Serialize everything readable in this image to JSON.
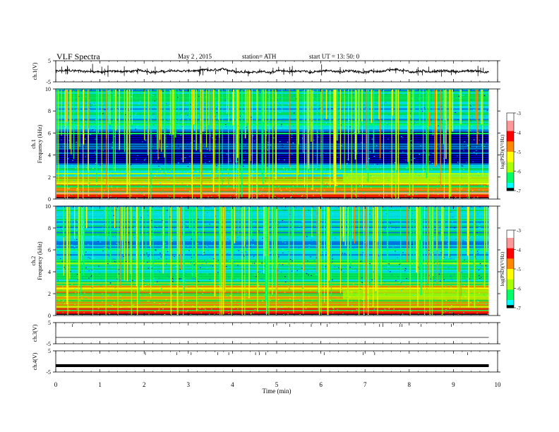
{
  "header": {
    "title": "VLF  Spectra",
    "date": "May 2  , 2015",
    "station": "station= ATH",
    "start": "start  UT  =    13: 50: 0"
  },
  "chart_data": [
    {
      "type": "line",
      "panel": "ch1_waveform",
      "ylabel": "ch.1(V)",
      "y_ticks": [
        "5",
        "-5"
      ],
      "ylim": [
        -5,
        5
      ],
      "baseline": 0,
      "x_ticks": [
        0,
        1,
        2,
        3,
        4,
        5,
        6,
        7,
        8,
        9,
        10
      ],
      "xlim": [
        0,
        10
      ]
    },
    {
      "type": "heatmap",
      "panel": "ch1_spectrogram",
      "ylabel": "ch.1\nFrequency (kHz)",
      "ylabel_parts": [
        "ch.1",
        "Frequency  (kHz)"
      ],
      "y_ticks": [
        "10",
        "8",
        "6",
        "4",
        "2",
        "0"
      ],
      "ylim": [
        0,
        10
      ],
      "xlim": [
        0,
        10
      ],
      "data_end_min": 9.8,
      "colorbar": {
        "label": "log(PSD)(V²/Hz)",
        "ticks": [
          "-3",
          "-4",
          "-5",
          "-6",
          "-7"
        ],
        "range": [
          -7,
          -3
        ]
      }
    },
    {
      "type": "heatmap",
      "panel": "ch2_spectrogram",
      "ylabel": "ch.2\nFrequency (kHz)",
      "ylabel_parts": [
        "ch.2",
        "Frequency  (kHz)"
      ],
      "y_ticks": [
        "10",
        "8",
        "6",
        "4",
        "2",
        "0"
      ],
      "ylim": [
        0,
        10
      ],
      "xlim": [
        0,
        10
      ],
      "data_end_min": 9.8,
      "colorbar": {
        "label": "log(PSD)(V²/Hz)",
        "ticks": [
          "-3",
          "-4",
          "-5",
          "-6",
          "-7"
        ],
        "range": [
          -7,
          -3
        ]
      }
    },
    {
      "type": "line",
      "panel": "ch3_waveform",
      "ylabel": "ch.3(V)",
      "y_ticks": [
        "5",
        "-5"
      ],
      "ylim": [
        -5,
        5
      ],
      "baseline": -2,
      "xlim": [
        0,
        10
      ]
    },
    {
      "type": "line",
      "panel": "ch4_waveform",
      "ylabel": "ch.4(V)",
      "y_ticks": [
        "5",
        "-5"
      ],
      "ylim": [
        -5,
        5
      ],
      "baseline": -2,
      "xlim": [
        0,
        10
      ]
    }
  ],
  "x_axis": {
    "label": "Time  (min)",
    "ticks": [
      "0",
      "1",
      "2",
      "3",
      "4",
      "5",
      "6",
      "7",
      "8",
      "9",
      "10"
    ]
  },
  "colors": {
    "spectrum_bg": "#000000",
    "colormap": [
      "#000000",
      "#0000cc",
      "#0088ff",
      "#00ffff",
      "#00ff66",
      "#aaff00",
      "#ffff00",
      "#ff8800",
      "#ff0000",
      "#ff9999",
      "#ffffff"
    ]
  }
}
